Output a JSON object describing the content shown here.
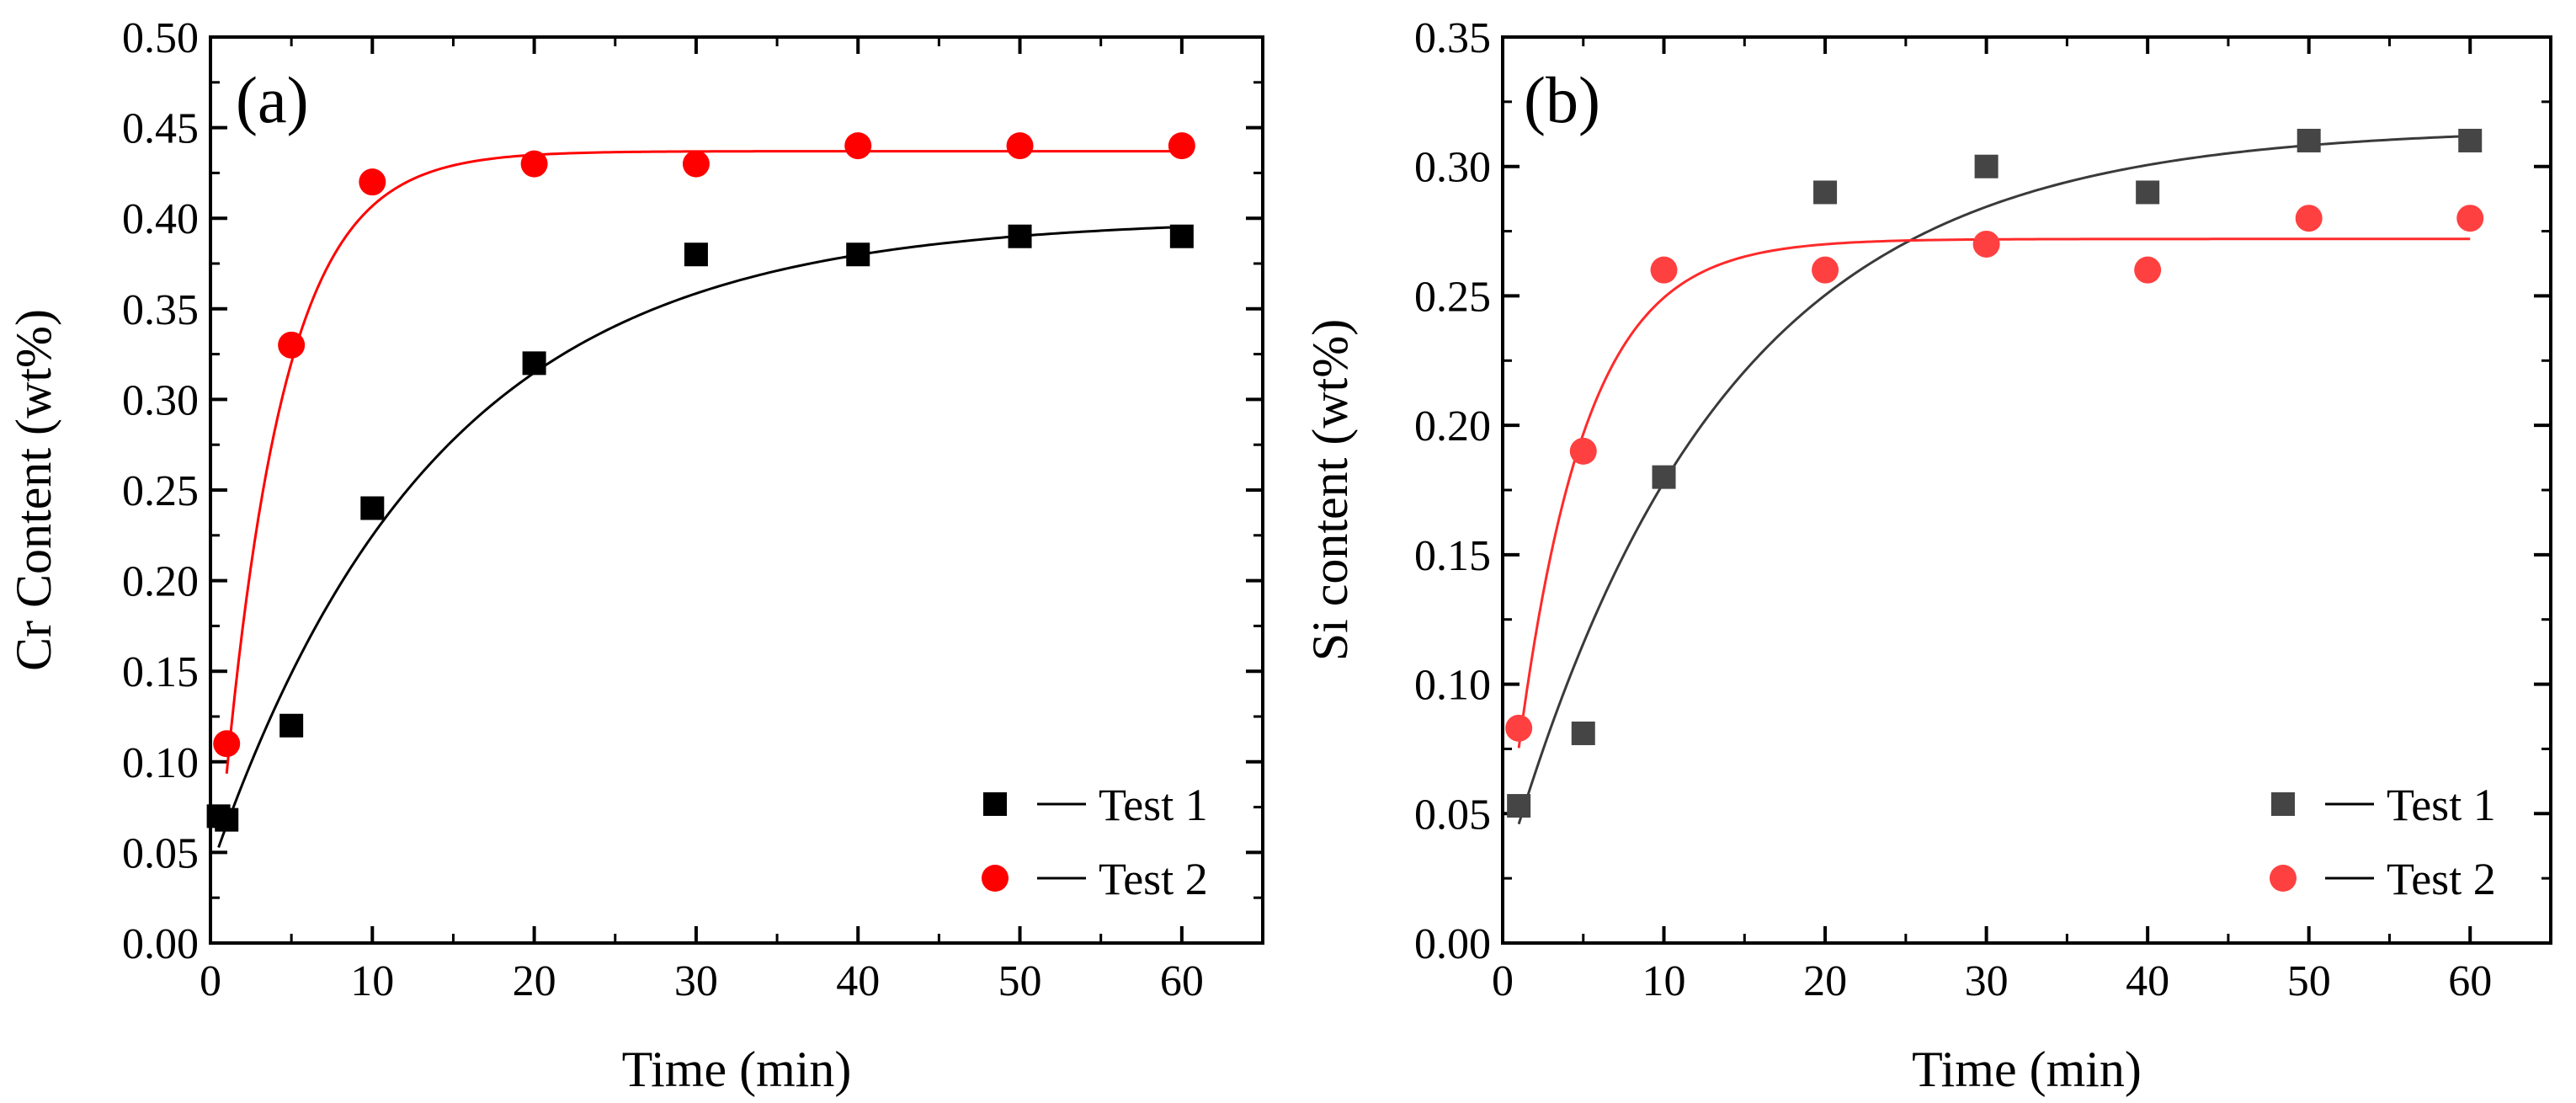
{
  "chart_data": [
    {
      "type": "scatter",
      "panel_label": "(a)",
      "xlabel": "Time (min)",
      "ylabel": "Cr Content (wt%)",
      "xlim": [
        0,
        65
      ],
      "ylim": [
        0,
        0.5
      ],
      "xticks": [
        0,
        10,
        20,
        30,
        40,
        50,
        60
      ],
      "xtick_labels": [
        "0",
        "10",
        "20",
        "30",
        "40",
        "50",
        "60"
      ],
      "yticks": [
        0,
        0.05,
        0.1,
        0.15,
        0.2,
        0.25,
        0.3,
        0.35,
        0.4,
        0.45,
        0.5
      ],
      "ytick_labels": [
        "0.00",
        "0.05",
        "0.10",
        "0.15",
        "0.20",
        "0.25",
        "0.30",
        "0.35",
        "0.40",
        "0.45",
        "0.50"
      ],
      "legend_position": "bottom-right",
      "series": [
        {
          "name": "Test 1",
          "marker": "square",
          "color": "#000000",
          "line_color": "#000000",
          "x": [
            0.5,
            1,
            5,
            10,
            20,
            30,
            40,
            50,
            60
          ],
          "y": [
            0.07,
            0.068,
            0.12,
            0.24,
            0.32,
            0.38,
            0.38,
            0.39,
            0.39
          ],
          "fit": {
            "model": "exponential",
            "y0": 0.4,
            "a": 0.36,
            "k": 0.072,
            "x_start": 0.5,
            "x_end": 60
          }
        },
        {
          "name": "Test 2",
          "marker": "circle",
          "color": "#ff0000",
          "line_color": "#ff0000",
          "x": [
            1,
            5,
            10,
            20,
            30,
            40,
            50,
            60
          ],
          "y": [
            0.11,
            0.33,
            0.42,
            0.43,
            0.43,
            0.44,
            0.44,
            0.44
          ],
          "fit": {
            "model": "exponential",
            "y0": 0.437,
            "a": 0.45,
            "k": 0.27,
            "x_start": 1,
            "x_end": 60
          }
        }
      ]
    },
    {
      "type": "scatter",
      "panel_label": "(b)",
      "xlabel": "Time (min)",
      "ylabel": "Si content (wt%)",
      "xlim": [
        0,
        65
      ],
      "ylim": [
        0,
        0.35
      ],
      "xticks": [
        0,
        10,
        20,
        30,
        40,
        50,
        60
      ],
      "xtick_labels": [
        "0",
        "10",
        "20",
        "30",
        "40",
        "50",
        "60"
      ],
      "yticks": [
        0,
        0.05,
        0.1,
        0.15,
        0.2,
        0.25,
        0.3,
        0.35
      ],
      "ytick_labels": [
        "0.00",
        "0.05",
        "0.10",
        "0.15",
        "0.20",
        "0.25",
        "0.30",
        "0.35"
      ],
      "legend_position": "bottom-right",
      "series": [
        {
          "name": "Test 1",
          "marker": "square",
          "color": "#454545",
          "line_color": "#3a3a3a",
          "x": [
            1,
            5,
            10,
            20,
            30,
            40,
            50,
            60
          ],
          "y": [
            0.053,
            0.081,
            0.18,
            0.29,
            0.3,
            0.29,
            0.31,
            0.31
          ],
          "fit": {
            "model": "exponential",
            "y0": 0.315,
            "a": 0.29,
            "k": 0.075,
            "x_start": 1,
            "x_end": 60
          }
        },
        {
          "name": "Test 2",
          "marker": "circle",
          "color": "#ff4040",
          "line_color": "#ff2a2a",
          "x": [
            1,
            5,
            10,
            20,
            30,
            40,
            50,
            60
          ],
          "y": [
            0.083,
            0.19,
            0.26,
            0.26,
            0.27,
            0.26,
            0.28,
            0.28
          ],
          "fit": {
            "model": "exponential",
            "y0": 0.272,
            "a": 0.25,
            "k": 0.24,
            "x_start": 1,
            "x_end": 60
          }
        }
      ]
    }
  ]
}
